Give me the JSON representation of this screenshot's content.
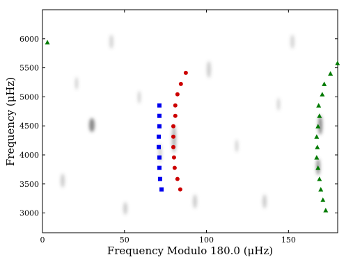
{
  "chart_data": {
    "type": "scatter",
    "xlabel": "Frequency Modulo 180.0 (μHz)",
    "ylabel": "Frequency (μHz)",
    "xlim": [
      0,
      180
    ],
    "ylim": [
      2660,
      6500
    ],
    "xticks": [
      0,
      50,
      100,
      150
    ],
    "yticks": [
      3000,
      3500,
      4000,
      4500,
      5000,
      5500,
      6000
    ],
    "series": [
      {
        "color": "#0000ee",
        "marker": "square",
        "x": [
          71.3,
          71.3,
          71.3,
          70.9,
          70.9,
          71.3,
          71.3,
          71.7,
          72.6
        ],
        "values": [
          4852,
          4673,
          4493,
          4314,
          4135,
          3956,
          3777,
          3585,
          3406
        ]
      },
      {
        "color": "#cc0000",
        "marker": "circle",
        "x": [
          87.4,
          84.4,
          82.3,
          81.0,
          81.0,
          79.8,
          79.8,
          79.8,
          80.2,
          80.6,
          82.3,
          84.0
        ],
        "values": [
          5413,
          5222,
          5043,
          4852,
          4673,
          4493,
          4314,
          4135,
          3956,
          3777,
          3585,
          3406
        ]
      },
      {
        "color": "#007a00",
        "marker": "triangle",
        "x": [
          3.0,
          179.9,
          175.6,
          171.8,
          170.6,
          168.4,
          168.9,
          168.0,
          167.2,
          167.6,
          167.2,
          168.0,
          168.9,
          169.7,
          171.0,
          172.7
        ],
        "values": [
          5940,
          5581,
          5401,
          5222,
          5043,
          4852,
          4673,
          4493,
          4314,
          4135,
          3956,
          3777,
          3585,
          3406,
          3227,
          3048
        ]
      }
    ]
  }
}
